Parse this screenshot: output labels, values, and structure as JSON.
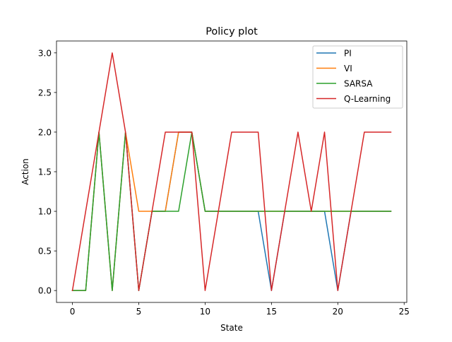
{
  "chart_data": {
    "type": "line",
    "title": "Policy plot",
    "xlabel": "State",
    "ylabel": "Action",
    "xlim": [
      -1.2,
      25.2
    ],
    "ylim": [
      -0.15,
      3.15
    ],
    "xticks": [
      0,
      5,
      10,
      15,
      20,
      25
    ],
    "yticks": [
      0.0,
      0.5,
      1.0,
      1.5,
      2.0,
      2.5,
      3.0
    ],
    "xtick_labels": [
      "0",
      "5",
      "10",
      "15",
      "20",
      "25"
    ],
    "ytick_labels": [
      "0.0",
      "0.5",
      "1.0",
      "1.5",
      "2.0",
      "2.5",
      "3.0"
    ],
    "grid": false,
    "legend_position": "top-right",
    "x": [
      0,
      1,
      2,
      3,
      4,
      5,
      6,
      7,
      8,
      9,
      10,
      11,
      12,
      13,
      14,
      15,
      16,
      17,
      18,
      19,
      20,
      21,
      22,
      23,
      24
    ],
    "series": [
      {
        "name": "PI",
        "color": "#1f77b4",
        "values": [
          0,
          0,
          2,
          0,
          2,
          0,
          1,
          1,
          2,
          2,
          1,
          1,
          1,
          1,
          1,
          0,
          1,
          1,
          1,
          1,
          0,
          1,
          1,
          1,
          1
        ]
      },
      {
        "name": "VI",
        "color": "#ff7f0e",
        "values": [
          0,
          0,
          2,
          0,
          2,
          1,
          1,
          1,
          2,
          2,
          1,
          1,
          1,
          1,
          1,
          1,
          1,
          1,
          1,
          1,
          1,
          1,
          1,
          1,
          1
        ]
      },
      {
        "name": "SARSA",
        "color": "#2ca02c",
        "values": [
          0,
          0,
          2,
          0,
          2,
          0,
          1,
          1,
          1,
          2,
          1,
          1,
          1,
          1,
          1,
          1,
          1,
          1,
          1,
          1,
          1,
          1,
          1,
          1,
          1
        ]
      },
      {
        "name": "Q-Learning",
        "color": "#d62728",
        "values": [
          0,
          1,
          2,
          3,
          2,
          0,
          1,
          2,
          2,
          2,
          0,
          1,
          2,
          2,
          2,
          0,
          1,
          2,
          1,
          2,
          0,
          1,
          2,
          2,
          2
        ]
      }
    ]
  }
}
